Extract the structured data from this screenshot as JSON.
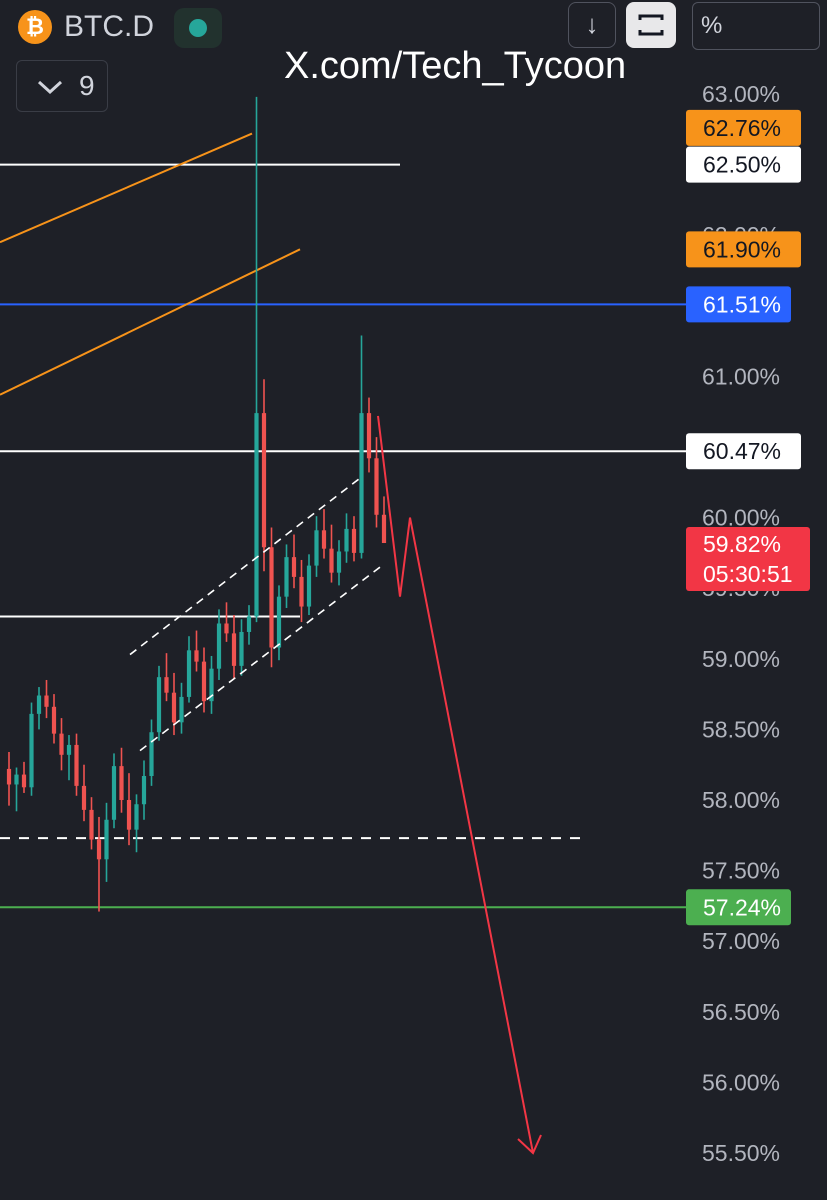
{
  "header": {
    "coin_icon_glyph": "₿",
    "symbol": "BTC.D",
    "market_status": "open",
    "interval_value": "9",
    "scale_mode": "%",
    "watermark": "X.com/Tech_Tycoon"
  },
  "colors": {
    "background": "#1e2027",
    "up": "#26a69a",
    "down": "#ef5350",
    "orange": "#f7931a",
    "blue": "#2962ff",
    "green": "#4caf50",
    "red": "#f23645"
  },
  "price_axis": {
    "ticks": [
      "63.00%",
      "62.50%",
      "62.00%",
      "61.50%",
      "61.00%",
      "60.50%",
      "60.00%",
      "59.50%",
      "59.00%",
      "58.50%",
      "58.00%",
      "57.50%",
      "57.00%",
      "56.50%",
      "56.00%",
      "55.50%"
    ],
    "range": [
      55.3,
      63.3
    ]
  },
  "price_tags": [
    {
      "label": "62.76%",
      "value": 62.76,
      "kind": "orange"
    },
    {
      "label": "62.50%",
      "value": 62.5,
      "kind": "white"
    },
    {
      "label": "61.90%",
      "value": 61.9,
      "kind": "orange"
    },
    {
      "label": "61.51%",
      "value": 61.51,
      "kind": "blue"
    },
    {
      "label": "60.47%",
      "value": 60.47,
      "kind": "white"
    },
    {
      "label": "59.82%",
      "sublabel": "05:30:51",
      "value": 59.82,
      "kind": "red"
    },
    {
      "label": "57.24%",
      "value": 57.24,
      "kind": "green"
    }
  ],
  "drawings": {
    "horizontal_lines": [
      {
        "value": 62.5,
        "style": "white",
        "extent": "partial"
      },
      {
        "value": 61.51,
        "style": "blue",
        "extent": "full"
      },
      {
        "value": 60.47,
        "style": "white",
        "extent": "full"
      },
      {
        "value": 59.3,
        "style": "white",
        "extent": "partial"
      },
      {
        "value": 57.73,
        "style": "white-dashed",
        "extent": "partial"
      },
      {
        "value": 57.24,
        "style": "green",
        "extent": "full"
      }
    ],
    "trend_channel": "orange-pair",
    "rising_channel": "white-dashed-pair",
    "projection": "red-zigzag-arrow-down",
    "projection_target": 55.5
  },
  "chart_data": {
    "type": "candlestick",
    "title": "",
    "xlabel": "",
    "ylabel": "",
    "ylim": [
      55.3,
      63.3
    ],
    "grid": false,
    "candles": [
      [
        58.22,
        58.34,
        57.96,
        58.11
      ],
      [
        58.11,
        58.23,
        57.92,
        58.18
      ],
      [
        58.18,
        58.27,
        58.05,
        58.09
      ],
      [
        58.09,
        58.69,
        58.03,
        58.61
      ],
      [
        58.61,
        58.8,
        58.5,
        58.74
      ],
      [
        58.74,
        58.85,
        58.58,
        58.66
      ],
      [
        58.66,
        58.75,
        58.4,
        58.47
      ],
      [
        58.47,
        58.58,
        58.21,
        58.32
      ],
      [
        58.32,
        58.46,
        58.14,
        58.39
      ],
      [
        58.39,
        58.47,
        58.03,
        58.1
      ],
      [
        58.1,
        58.25,
        57.85,
        57.93
      ],
      [
        57.93,
        58.02,
        57.65,
        57.72
      ],
      [
        57.72,
        57.88,
        57.21,
        57.58
      ],
      [
        57.58,
        57.98,
        57.42,
        57.86
      ],
      [
        57.86,
        58.33,
        57.8,
        58.24
      ],
      [
        58.24,
        58.37,
        57.91,
        58.0
      ],
      [
        58.0,
        58.19,
        57.68,
        57.79
      ],
      [
        57.79,
        58.04,
        57.63,
        57.97
      ],
      [
        57.97,
        58.28,
        57.86,
        58.17
      ],
      [
        58.17,
        58.57,
        58.1,
        58.48
      ],
      [
        58.48,
        58.95,
        58.42,
        58.87
      ],
      [
        58.87,
        59.04,
        58.7,
        58.76
      ],
      [
        58.76,
        58.9,
        58.46,
        58.55
      ],
      [
        58.55,
        58.83,
        58.47,
        58.73
      ],
      [
        58.73,
        59.16,
        58.69,
        59.06
      ],
      [
        59.06,
        59.2,
        58.91,
        58.98
      ],
      [
        58.98,
        59.08,
        58.62,
        58.7
      ],
      [
        58.7,
        59.02,
        58.61,
        58.93
      ],
      [
        58.93,
        59.35,
        58.85,
        59.25
      ],
      [
        59.25,
        59.4,
        59.12,
        59.18
      ],
      [
        59.18,
        59.31,
        58.86,
        58.95
      ],
      [
        58.95,
        59.28,
        58.88,
        59.19
      ],
      [
        59.19,
        59.38,
        59.1,
        59.3
      ],
      [
        59.3,
        62.98,
        59.26,
        60.74
      ],
      [
        60.74,
        60.98,
        59.62,
        59.79
      ],
      [
        59.79,
        59.93,
        58.94,
        59.08
      ],
      [
        59.08,
        59.52,
        58.99,
        59.44
      ],
      [
        59.44,
        59.81,
        59.36,
        59.72
      ],
      [
        59.72,
        59.88,
        59.5,
        59.58
      ],
      [
        59.58,
        59.7,
        59.26,
        59.37
      ],
      [
        59.37,
        59.74,
        59.31,
        59.66
      ],
      [
        59.66,
        60.01,
        59.58,
        59.91
      ],
      [
        59.91,
        60.06,
        59.71,
        59.78
      ],
      [
        59.78,
        59.95,
        59.54,
        59.61
      ],
      [
        59.61,
        59.84,
        59.52,
        59.76
      ],
      [
        59.76,
        60.03,
        59.68,
        59.92
      ],
      [
        59.92,
        60.01,
        59.69,
        59.75
      ],
      [
        59.75,
        61.29,
        59.71,
        60.74
      ],
      [
        60.74,
        60.85,
        60.32,
        60.42
      ],
      [
        60.42,
        60.57,
        59.93,
        60.02
      ],
      [
        60.02,
        60.15,
        59.82,
        59.82
      ]
    ]
  }
}
